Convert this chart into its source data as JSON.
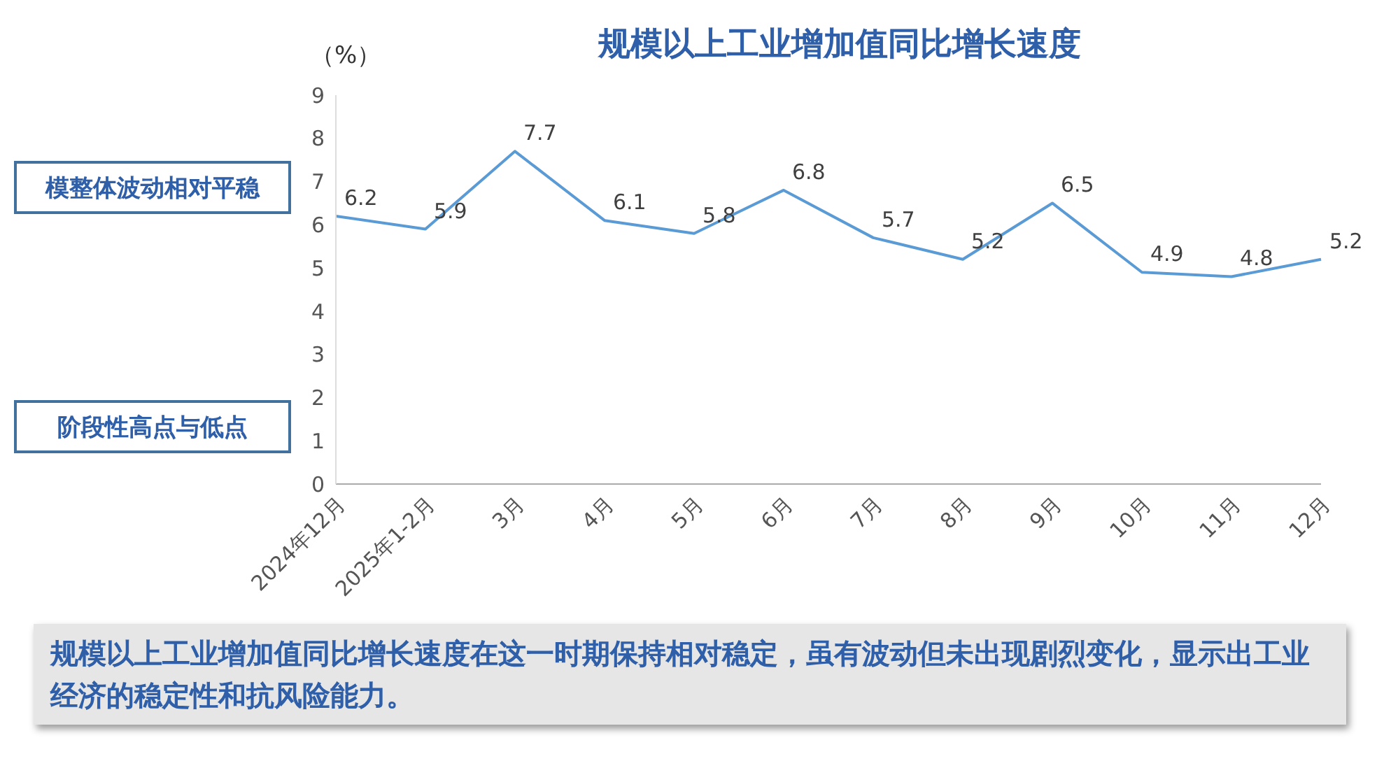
{
  "chart_data": {
    "type": "line",
    "title": "规模以上工业增加值同比增长速度",
    "ylabel": "（%）",
    "categories": [
      "2024年12月",
      "2025年1-2月",
      "3月",
      "4月",
      "5月",
      "6月",
      "7月",
      "8月",
      "9月",
      "10月",
      "11月",
      "12月"
    ],
    "series": [
      {
        "color": "#5b9bd5",
        "values": [
          6.2,
          5.9,
          7.7,
          6.1,
          5.8,
          6.8,
          5.7,
          5.2,
          6.5,
          4.9,
          4.8,
          5.2
        ]
      }
    ],
    "ylim": [
      0,
      9
    ],
    "yticks": [
      0,
      1,
      2,
      3,
      4,
      5,
      6,
      7,
      8,
      9
    ],
    "grid": false,
    "legend": false,
    "marker": "none",
    "line_style": "solid",
    "data_labels": true,
    "annotations": [
      "模整体波动相对平稳",
      "阶段性高点与低点",
      "规模以上工业增加值同比增长速度在这一时期保持相对稳定，虽有波动但未出现剧烈变化，显示出工业经济的稳定性和抗风险能力。"
    ]
  }
}
